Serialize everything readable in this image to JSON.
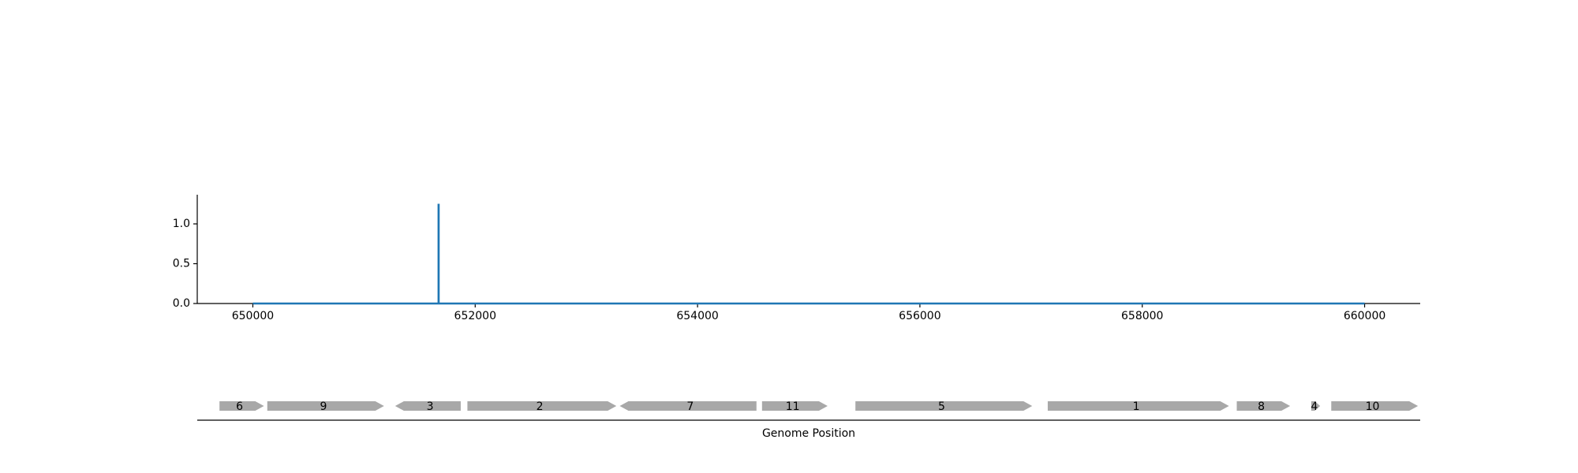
{
  "chart_data": {
    "type": "line",
    "title": "",
    "xlabel": "Genome Position",
    "ylabel": "",
    "xlim": [
      649500,
      660500
    ],
    "ylim": [
      0,
      1.35
    ],
    "x_ticks": [
      650000,
      652000,
      654000,
      656000,
      658000,
      660000
    ],
    "y_ticks": [
      0.0,
      0.5,
      1.0
    ],
    "x_tick_labels": [
      "650000",
      "652000",
      "654000",
      "656000",
      "658000",
      "660000"
    ],
    "y_tick_labels": [
      "0.0",
      "0.5",
      "1.0"
    ],
    "grid": false,
    "series": [
      {
        "color": "#1f77b4",
        "x": [
          650000,
          651670,
          651670,
          651672,
          651672,
          660000
        ],
        "y": [
          0,
          0,
          1.24,
          1.24,
          0,
          0
        ]
      }
    ],
    "genes": [
      {
        "label": "6",
        "start": 649700,
        "end": 650100,
        "strand": "+"
      },
      {
        "label": "9",
        "start": 650130,
        "end": 651180,
        "strand": "+"
      },
      {
        "label": "3",
        "start": 651280,
        "end": 651870,
        "strand": "-"
      },
      {
        "label": "2",
        "start": 651930,
        "end": 653270,
        "strand": "+"
      },
      {
        "label": "7",
        "start": 653300,
        "end": 654530,
        "strand": "-"
      },
      {
        "label": "11",
        "start": 654580,
        "end": 655170,
        "strand": "+"
      },
      {
        "label": "5",
        "start": 655420,
        "end": 657010,
        "strand": "+"
      },
      {
        "label": "1",
        "start": 657150,
        "end": 658780,
        "strand": "+"
      },
      {
        "label": "8",
        "start": 658850,
        "end": 659330,
        "strand": "+"
      },
      {
        "label": "4",
        "start": 659520,
        "end": 659600,
        "strand": "+"
      },
      {
        "label": "10",
        "start": 659700,
        "end": 660480,
        "strand": "+"
      }
    ],
    "colors": {
      "line": "#1f77b4",
      "gene": "#a8a8a8",
      "axis": "#000000"
    }
  }
}
